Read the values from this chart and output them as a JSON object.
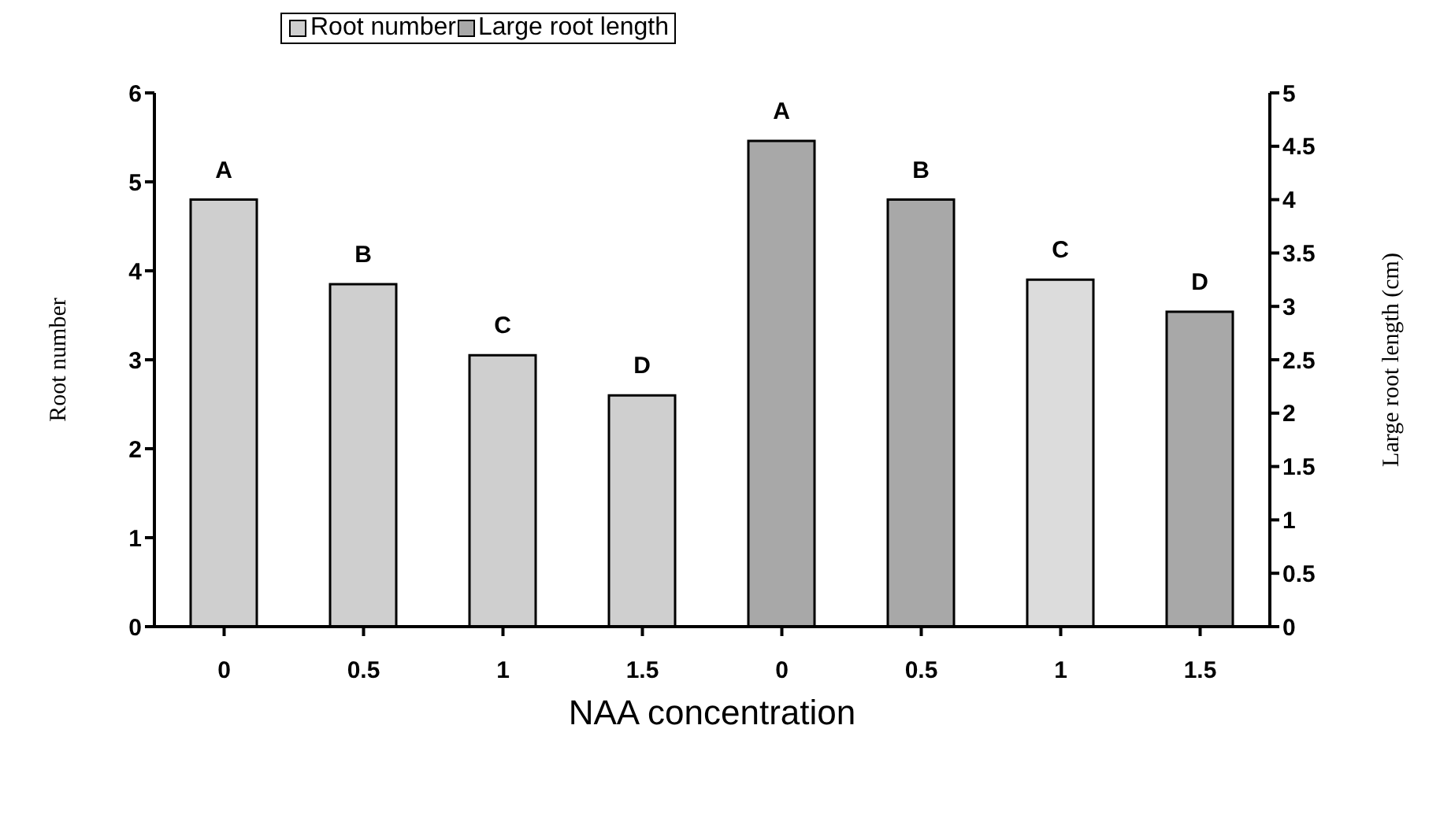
{
  "chart_data": {
    "type": "bar",
    "xlabel": "NAA concentration",
    "ylabel": "Root number",
    "y2label": "Large root length (cm)",
    "categories": [
      "0",
      "0.5",
      "1",
      "1.5",
      "0",
      "0.5",
      "1",
      "1.5"
    ],
    "series": [
      {
        "name": "Root number",
        "color": "#cfcfcf",
        "values": [
          4.8,
          3.85,
          3.05,
          2.6,
          null,
          null,
          null,
          null
        ],
        "value_labels": [
          "A",
          "B",
          "C",
          "D",
          null,
          null,
          null,
          null
        ]
      },
      {
        "name": "Large root length",
        "color": "#a8a8a8",
        "colors": [
          null,
          null,
          null,
          null,
          "#a8a8a8",
          "#a8a8a8",
          "#dcdcdc",
          "#a8a8a8"
        ],
        "axis": "y2",
        "values": [
          null,
          null,
          null,
          null,
          4.55,
          4.0,
          3.25,
          2.95
        ],
        "value_labels": [
          null,
          null,
          null,
          null,
          "A",
          "B",
          "C",
          "D"
        ]
      }
    ],
    "ylim": [
      0,
      6
    ],
    "yticks": [
      0,
      1,
      2,
      3,
      4,
      5,
      6
    ],
    "y2lim": [
      0,
      5
    ],
    "y2ticks": [
      0,
      0.5,
      1,
      1.5,
      2,
      2.5,
      3,
      3.5,
      4,
      4.5,
      5
    ],
    "grid": false,
    "legend": "top"
  }
}
